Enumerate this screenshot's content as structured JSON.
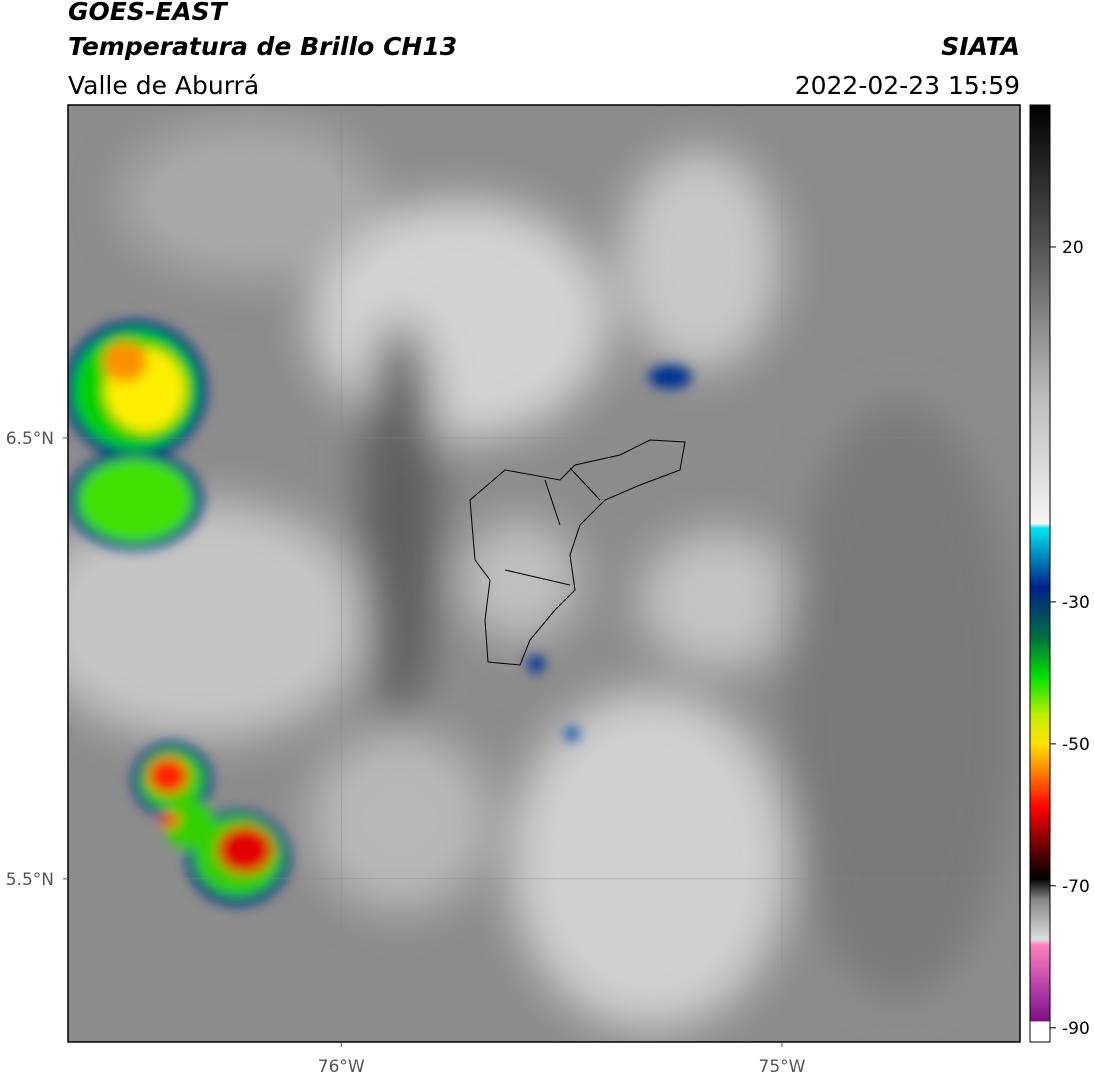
{
  "chart_data": {
    "type": "map",
    "title": "GOES-EAST",
    "subtitle": "Temperatura de Brillo CH13",
    "region": "Valle de Aburrá",
    "source": "SIATA",
    "datetime": "2022-02-23 15:59",
    "xlim": [
      -76.62,
      -74.46
    ],
    "ylim": [
      5.13,
      7.255
    ],
    "xticks": [
      {
        "value": -76,
        "label": "76°W"
      },
      {
        "value": -75,
        "label": "75°W"
      }
    ],
    "yticks": [
      {
        "value": 6.5,
        "label": "6.5°N"
      },
      {
        "value": 5.5,
        "label": "5.5°N"
      }
    ],
    "grid": true,
    "colorbar": {
      "lim": [
        -92,
        40
      ],
      "ticks": [
        20,
        -30,
        -50,
        -70,
        -90
      ],
      "stops": [
        {
          "value": 40,
          "color": "#000000"
        },
        {
          "value": 20,
          "color": "#555555"
        },
        {
          "value": -1,
          "color": "#bbbbbb"
        },
        {
          "value": -19,
          "color": "#f4f4f4"
        },
        {
          "value": -19.6,
          "color": "#00e5ee"
        },
        {
          "value": -28,
          "color": "#00208a"
        },
        {
          "value": -35,
          "color": "#007040"
        },
        {
          "value": -40.5,
          "color": "#00e000"
        },
        {
          "value": -46,
          "color": "#c0f000"
        },
        {
          "value": -50,
          "color": "#ffe000"
        },
        {
          "value": -54,
          "color": "#ff8000"
        },
        {
          "value": -59,
          "color": "#ff0000"
        },
        {
          "value": -65,
          "color": "#600000"
        },
        {
          "value": -69,
          "color": "#000000"
        },
        {
          "value": -72,
          "color": "#888888"
        },
        {
          "value": -77.6,
          "color": "#dddddd"
        },
        {
          "value": -78.3,
          "color": "#ff80c0"
        },
        {
          "value": -86,
          "color": "#a030a0"
        },
        {
          "value": -89,
          "color": "#801080"
        },
        {
          "value": -89.2,
          "color": "#ffffff"
        },
        {
          "value": -92,
          "color": "#ffffff"
        }
      ]
    }
  }
}
